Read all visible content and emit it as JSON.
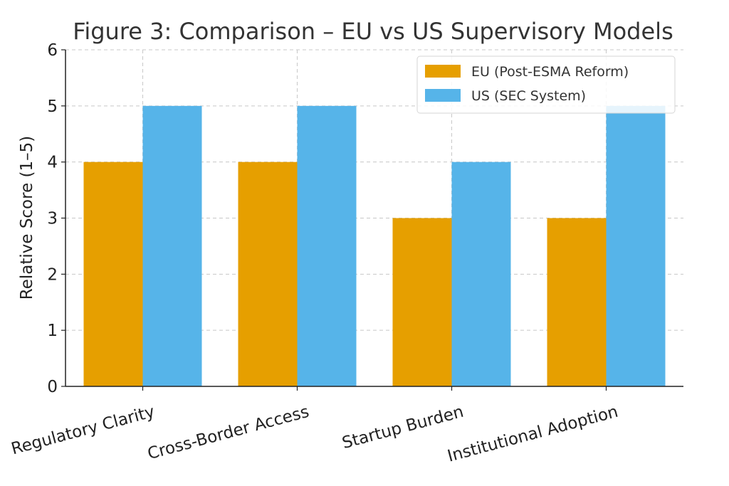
{
  "chart_data": {
    "type": "bar",
    "title": "Figure 3: Comparison – EU vs US Supervisory Models",
    "xlabel": "",
    "ylabel": "Relative Score (1–5)",
    "ylim": [
      0,
      6
    ],
    "yticks": [
      0,
      1,
      2,
      3,
      4,
      5,
      6
    ],
    "grid": true,
    "legend_position": "top-right",
    "categories": [
      "Regulatory Clarity",
      "Cross-Border Access",
      "Startup Burden",
      "Institutional Adoption"
    ],
    "series": [
      {
        "name": "EU (Post-ESMA Reform)",
        "color": "#E69F00",
        "values": [
          4,
          4,
          3,
          3
        ]
      },
      {
        "name": "US (SEC System)",
        "color": "#56B4E9",
        "values": [
          5,
          5,
          4,
          5
        ]
      }
    ]
  }
}
